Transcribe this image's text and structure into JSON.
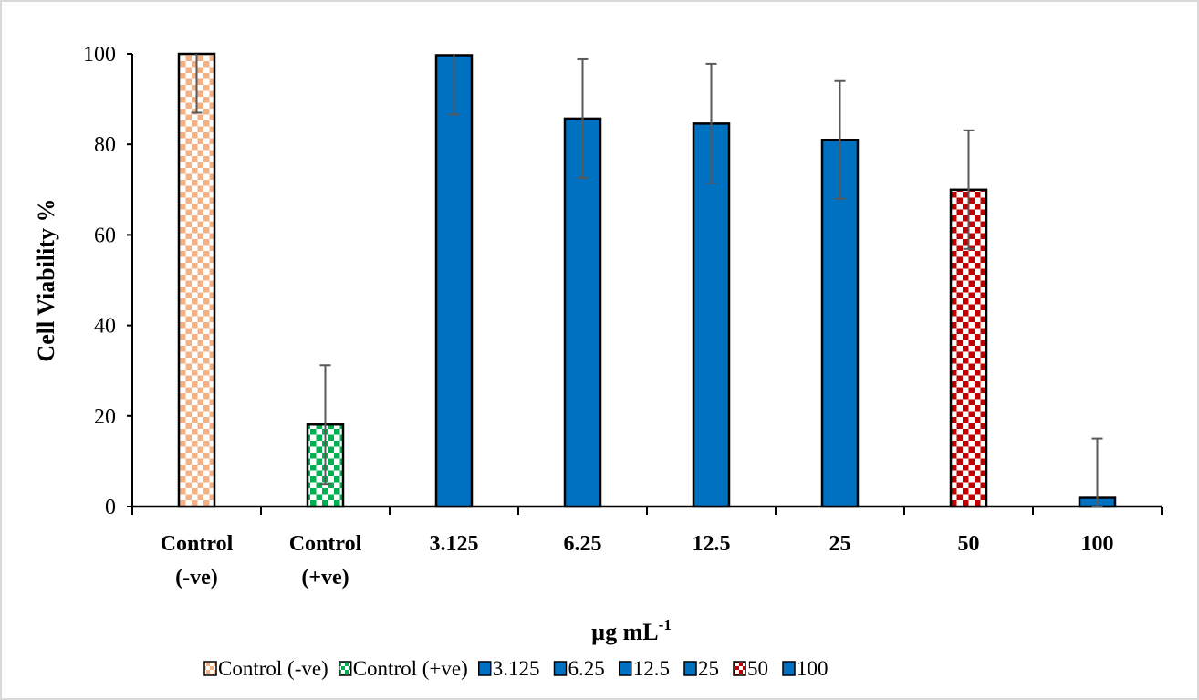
{
  "chart_data": {
    "type": "bar",
    "title": "",
    "xlabel": "µg mL",
    "xlabel_superscript": "-1",
    "ylabel": "Cell Viability %",
    "ylim": [
      0,
      100
    ],
    "yticks": [
      "0",
      "20",
      "40",
      "60",
      "80",
      "100"
    ],
    "grid": false,
    "legend_placement": "bottom",
    "categories": [
      {
        "line1": "Control",
        "line2": "(-ve)"
      },
      {
        "line1": "Control",
        "line2": "(+ve)"
      },
      {
        "line1": "3.125",
        "line2": ""
      },
      {
        "line1": "6.25",
        "line2": ""
      },
      {
        "line1": "12.5",
        "line2": ""
      },
      {
        "line1": "25",
        "line2": ""
      },
      {
        "line1": "50",
        "line2": ""
      },
      {
        "line1": "100",
        "line2": ""
      }
    ],
    "series": [
      {
        "name": "Control (-ve)",
        "value": 100,
        "error": 13.0,
        "fill": "#F4B183",
        "pattern": "checker"
      },
      {
        "name": "Control (+ve)",
        "value": 18.1,
        "error": 13.1,
        "fill": "#00B050",
        "pattern": "checker"
      },
      {
        "name": "3.125",
        "value": 99.7,
        "error": 13.1,
        "fill": "#0070C0",
        "pattern": "solid"
      },
      {
        "name": "6.25",
        "value": 85.7,
        "error": 13.1,
        "fill": "#0070C0",
        "pattern": "solid"
      },
      {
        "name": "12.5",
        "value": 84.6,
        "error": 13.2,
        "fill": "#0070C0",
        "pattern": "solid"
      },
      {
        "name": "25",
        "value": 81.0,
        "error": 13.0,
        "fill": "#0070C0",
        "pattern": "solid"
      },
      {
        "name": "50",
        "value": 70.0,
        "error": 13.1,
        "fill": "#C00000",
        "pattern": "checker"
      },
      {
        "name": "100",
        "value": 1.9,
        "error": 13.1,
        "fill": "#0070C0",
        "pattern": "solid"
      }
    ],
    "error_bar_color": "#595959"
  }
}
